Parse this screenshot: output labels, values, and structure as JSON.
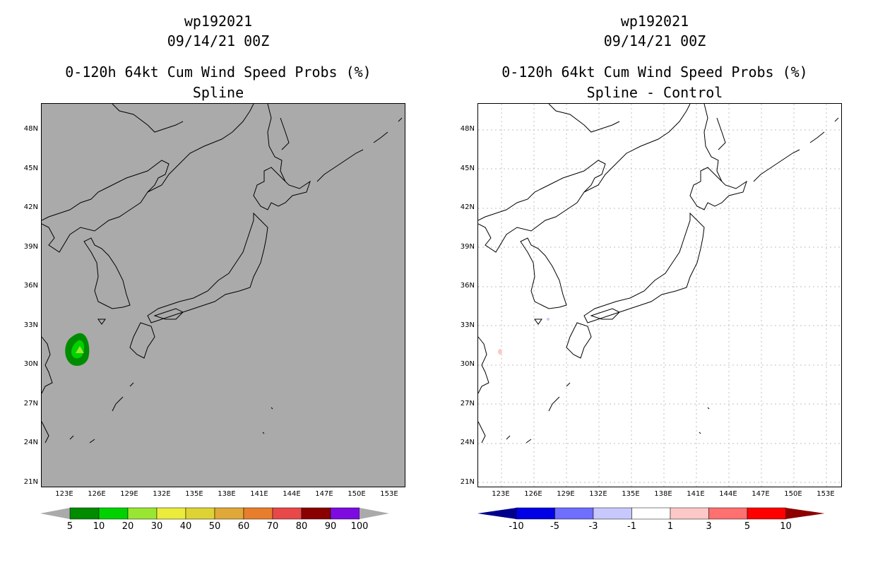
{
  "left": {
    "storm_id": "wp192021",
    "datetime": "09/14/21 00Z",
    "product": "0-120h 64kt Cum Wind Speed Probs (%)",
    "subtitle": "Spline",
    "background_color": "#aaaaaa",
    "colorbar": {
      "colors": [
        "#008c00",
        "#00d200",
        "#98e632",
        "#ebeb3c",
        "#ddd334",
        "#e0a838",
        "#e87e2c",
        "#e84848",
        "#8a0000",
        "#7d0be0"
      ],
      "labels": [
        "5",
        "10",
        "20",
        "30",
        "40",
        "50",
        "60",
        "70",
        "80",
        "90",
        "100"
      ]
    }
  },
  "right": {
    "storm_id": "wp192021",
    "datetime": "09/14/21 00Z",
    "product": "0-120h 64kt Cum Wind Speed Probs (%)",
    "subtitle": "Spline - Control",
    "background_color": "#ffffff",
    "colorbar": {
      "colors": [
        "#0000e6",
        "#6e6eff",
        "#c8c8ff",
        "#ffffff",
        "#ffc8c8",
        "#ff7070",
        "#ff0000"
      ],
      "end_low": "#00008c",
      "end_high": "#8c0000",
      "labels": [
        "-10",
        "-5",
        "-3",
        "-1",
        "1",
        "3",
        "5",
        "10"
      ]
    }
  },
  "lat_labels": [
    "48N",
    "45N",
    "42N",
    "39N",
    "36N",
    "33N",
    "30N",
    "27N",
    "24N",
    "21N"
  ],
  "lon_labels": [
    "123E",
    "126E",
    "129E",
    "132E",
    "135E",
    "138E",
    "141E",
    "144E",
    "147E",
    "150E",
    "153E"
  ]
}
